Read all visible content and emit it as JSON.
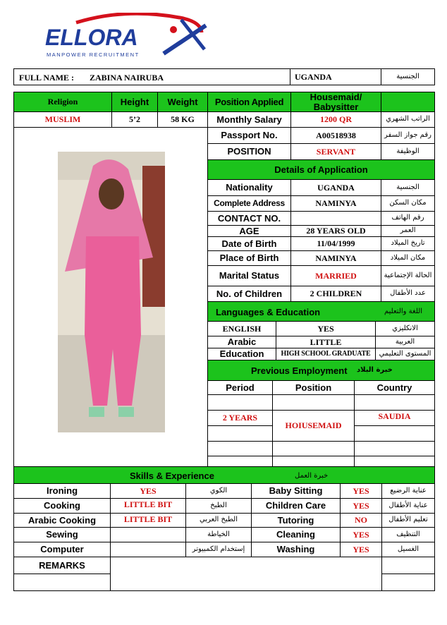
{
  "logo": {
    "name": "ELLORA",
    "tagline": "MANPOWER RECRUITMENT",
    "colors": {
      "blue": "#1f3d9c",
      "red": "#d4111c"
    }
  },
  "name_row": {
    "label": "FULL NAME :",
    "name": "ZABINA NAIRUBA",
    "nationality": "UGANDA",
    "nationality_ar": "الجنسية"
  },
  "summary": {
    "headers": [
      "Religion",
      "Height",
      "Weight",
      "Position Applied",
      "Housemaid/ Babysitter"
    ],
    "values": [
      "MUSLIM",
      "5’2",
      "58 KG",
      "Monthly Salary",
      "1200 QR",
      "الراتب الشهري"
    ]
  },
  "passport": {
    "label": "Passport No.",
    "value": "A00518938",
    "ar": "رقم جواز السفر"
  },
  "position": {
    "label": "POSITION",
    "value": "SERVANT",
    "ar": "الوظيفة"
  },
  "details": {
    "title": "Details of Application",
    "rows": [
      {
        "label": "Nationality",
        "value": "UGANDA",
        "ar": "الجنسية"
      },
      {
        "label": "Complete Address",
        "value": "NAMINYA",
        "ar": "مكان السكن"
      },
      {
        "label": "CONTACT NO.",
        "value": "",
        "ar": "رقم الهاتف"
      },
      {
        "label": "AGE",
        "value": "28 YEARS OLD",
        "ar": "العمر"
      },
      {
        "label": "Date of Birth",
        "value": "11/04/1999",
        "ar": "تاريخ الميلاد"
      },
      {
        "label": "Place of Birth",
        "value": "NAMINYA",
        "ar": "مكان الميلاد"
      },
      {
        "label": "Marital Status",
        "value": "MARRIED",
        "ar": "الحالة الإجتماعية"
      },
      {
        "label": "No. of Children",
        "value": "2 CHILDREN",
        "ar": "عدد الأطفال"
      }
    ]
  },
  "languages": {
    "title": "Languages & Education",
    "title_ar": "اللغة والتعليم",
    "rows": [
      {
        "label": "ENGLISH",
        "value": "YES",
        "ar": "الانكليزي"
      },
      {
        "label": "Arabic",
        "value": "LITTLE",
        "ar": "العربية"
      },
      {
        "label": "Education",
        "value": "HIGH SCHOOL GRADUATE",
        "ar": "المستوى التعليمي"
      }
    ]
  },
  "employment": {
    "title": "Previous Employment",
    "title_ar": "خبرة البلاد",
    "headers": [
      "Period",
      "Position",
      "Country"
    ],
    "period": "2 YEARS",
    "position": "HOIUSEMAID",
    "country": "SAUDIA"
  },
  "skills": {
    "title": "Skills & Experience",
    "title_ar": "خبرة العمل",
    "rows": [
      {
        "l": "Ironing",
        "lv": "YES",
        "la": "الكوي",
        "r": "Baby Sitting",
        "rv": "YES",
        "ra": "عناية الرضيع"
      },
      {
        "l": "Cooking",
        "lv": "LITTLE BIT",
        "la": "الطبخ",
        "r": "Children Care",
        "rv": "YES",
        "ra": "عناية الأطفال"
      },
      {
        "l": "Arabic Cooking",
        "lv": "LITTLE BIT",
        "la": "الطبخ العربي",
        "r": "Tutoring",
        "rv": "NO",
        "ra": "تعليم الأطفال"
      },
      {
        "l": "Sewing",
        "lv": "",
        "la": "الخياطة",
        "r": "Cleaning",
        "rv": "YES",
        "ra": "التنظيف"
      },
      {
        "l": "Computer",
        "lv": "",
        "la": "إستخدام الكمبيوتر",
        "r": "Washing",
        "rv": "YES",
        "ra": "الغسيل"
      }
    ],
    "remarks_label": "REMARKS"
  }
}
